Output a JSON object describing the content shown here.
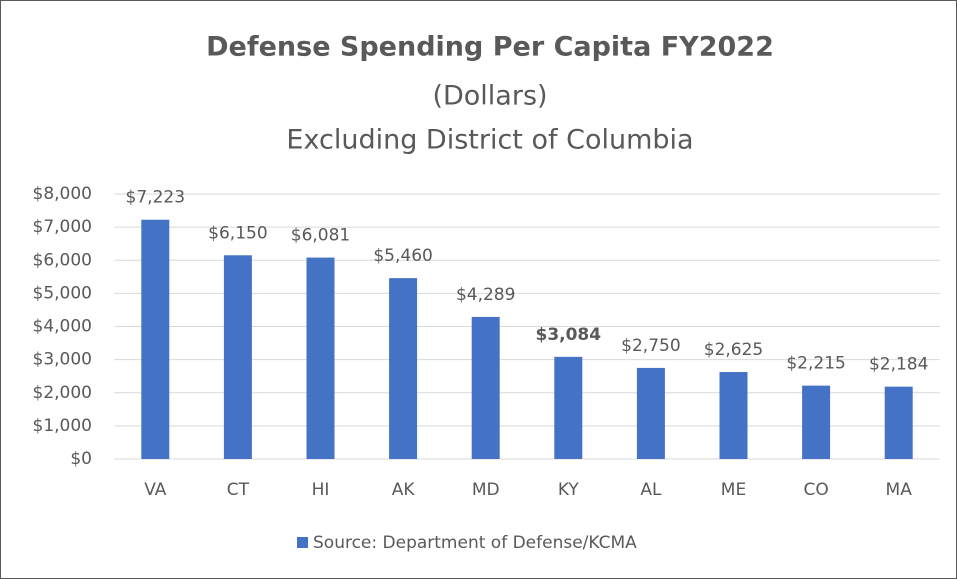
{
  "chart_data": {
    "type": "bar",
    "title": "Defense Spending Per Capita FY2022",
    "subtitle": "(Dollars)",
    "subtitle2": "Excluding District of Columbia",
    "categories": [
      "VA",
      "CT",
      "HI",
      "AK",
      "MD",
      "KY",
      "AL",
      "ME",
      "CO",
      "MA"
    ],
    "series": [
      {
        "name": "Source: Department of Defense/KCMA",
        "color": "#4472c4",
        "values": [
          7223,
          6150,
          6081,
          5460,
          4289,
          3084,
          2750,
          2625,
          2215,
          2184
        ],
        "value_labels": [
          "$7,223",
          "$6,150",
          "$6,081",
          "$5,460",
          "$4,289",
          "$3,084",
          "$2,750",
          "$2,625",
          "$2,215",
          "$2,184"
        ]
      }
    ],
    "highlight_category": "KY",
    "ylim": [
      0,
      8000
    ],
    "yticks": [
      {
        "value": 0,
        "label": "$0"
      },
      {
        "value": 1000,
        "label": "$1,000"
      },
      {
        "value": 2000,
        "label": "$2,000"
      },
      {
        "value": 3000,
        "label": "$3,000"
      },
      {
        "value": 4000,
        "label": "$4,000"
      },
      {
        "value": 5000,
        "label": "$5,000"
      },
      {
        "value": 6000,
        "label": "$6,000"
      },
      {
        "value": 7000,
        "label": "$7,000"
      },
      {
        "value": 8000,
        "label": "$8,000"
      }
    ],
    "grid": true,
    "legend": "bottom"
  }
}
